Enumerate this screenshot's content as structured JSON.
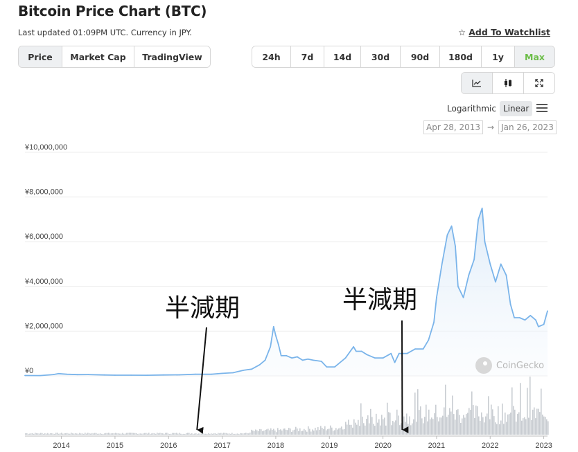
{
  "header": {
    "title": "Bitcoin Price Chart (BTC)",
    "subtitle": "Last updated 01:09PM UTC. Currency in JPY.",
    "watchlist_star": "☆",
    "watchlist_label": "Add To Watchlist"
  },
  "chart_tabs": [
    "Price",
    "Market Cap",
    "TradingView"
  ],
  "active_chart_tab": "Price",
  "range_tabs": [
    "24h",
    "7d",
    "14d",
    "30d",
    "90d",
    "180d",
    "1y",
    "Max"
  ],
  "active_range": "Max",
  "view_icons": [
    "line-chart-icon",
    "candlestick-icon",
    "expand-icon"
  ],
  "scale": {
    "logarithmic": "Logarithmic",
    "linear": "Linear",
    "active": "Linear",
    "menu_icon": "☰"
  },
  "date_range": {
    "from": "Apr 28, 2013",
    "arrow": "→",
    "to": "Jan 26, 2023"
  },
  "annotations": [
    {
      "text": "半減期",
      "year": 2016.53
    },
    {
      "text": "半減期",
      "year": 2020.36
    }
  ],
  "watermark": "CoinGecko",
  "colors": {
    "line": "#7ab4ea",
    "fill_top": "#dceaf8",
    "volume": "#c9cdd2",
    "accent": "#6bbd47",
    "grid": "#ececec"
  },
  "chart_data": {
    "type": "line",
    "title": "Bitcoin Price Chart (BTC)",
    "currency": "JPY",
    "ylim": [
      0,
      10000000
    ],
    "yticks": [
      0,
      2000000,
      4000000,
      6000000,
      8000000,
      10000000
    ],
    "ytick_labels": [
      "¥0",
      "¥2,000,000",
      "¥4,000,000",
      "¥6,000,000",
      "¥8,000,000",
      "¥10,000,000"
    ],
    "xlim": [
      2013.32,
      2023.07
    ],
    "xticks": [
      2014,
      2015,
      2016,
      2017,
      2018,
      2019,
      2020,
      2021,
      2022,
      2023
    ],
    "xtick_labels": [
      "2014",
      "2015",
      "2016",
      "2017",
      "2018",
      "2019",
      "2020",
      "2021",
      "2022",
      "2023"
    ],
    "grid": true,
    "series": [
      {
        "x": [
          2013.32,
          2013.6,
          2013.85,
          2013.95,
          2014.1,
          2014.3,
          2014.5,
          2014.8,
          2015.0,
          2015.3,
          2015.6,
          2015.9,
          2016.2,
          2016.5,
          2016.8,
          2017.0,
          2017.2,
          2017.4,
          2017.55,
          2017.7,
          2017.8,
          2017.9,
          2017.96,
          2018.0,
          2018.05,
          2018.1,
          2018.2,
          2018.3,
          2018.4,
          2018.5,
          2018.6,
          2018.7,
          2018.85,
          2018.95,
          2019.1,
          2019.3,
          2019.45,
          2019.5,
          2019.6,
          2019.7,
          2019.85,
          2020.0,
          2020.15,
          2020.22,
          2020.3,
          2020.45,
          2020.6,
          2020.75,
          2020.85,
          2020.95,
          2021.0,
          2021.1,
          2021.2,
          2021.28,
          2021.35,
          2021.4,
          2021.5,
          2021.6,
          2021.7,
          2021.78,
          2021.85,
          2021.9,
          2022.0,
          2022.1,
          2022.2,
          2022.3,
          2022.38,
          2022.45,
          2022.55,
          2022.65,
          2022.75,
          2022.85,
          2022.9,
          2023.0,
          2023.07
        ],
        "y": [
          15000,
          12000,
          60000,
          100000,
          70000,
          55000,
          60000,
          40000,
          32000,
          30000,
          28000,
          40000,
          45000,
          70000,
          70000,
          110000,
          140000,
          250000,
          300000,
          500000,
          700000,
          1300000,
          2200000,
          1800000,
          1400000,
          900000,
          900000,
          800000,
          850000,
          700000,
          750000,
          700000,
          650000,
          400000,
          400000,
          800000,
          1300000,
          1100000,
          1100000,
          950000,
          800000,
          800000,
          1000000,
          600000,
          1000000,
          1000000,
          1200000,
          1200000,
          1600000,
          2400000,
          3500000,
          5000000,
          6300000,
          6700000,
          5800000,
          4000000,
          3500000,
          4500000,
          5200000,
          7000000,
          7500000,
          6000000,
          5000000,
          4200000,
          5000000,
          4500000,
          3200000,
          2600000,
          2600000,
          2500000,
          2700000,
          2500000,
          2200000,
          2300000,
          2900000
        ]
      }
    ]
  }
}
